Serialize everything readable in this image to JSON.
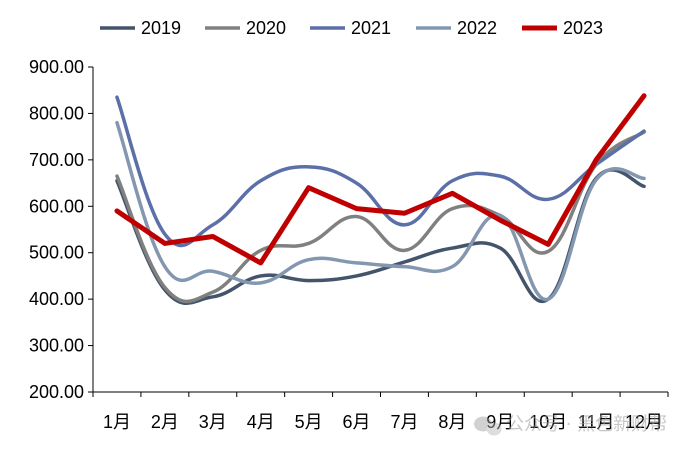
{
  "chart_data": {
    "type": "line",
    "title": "",
    "xlabel": "",
    "ylabel": "",
    "categories": [
      "1月",
      "2月",
      "3月",
      "4月",
      "5月",
      "6月",
      "7月",
      "8月",
      "9月",
      "10月",
      "11月",
      "12月"
    ],
    "ylim": [
      200,
      900
    ],
    "yticks": [
      200,
      300,
      400,
      500,
      600,
      700,
      800,
      900
    ],
    "ytick_labels": [
      "200.00",
      "300.00",
      "400.00",
      "500.00",
      "600.00",
      "700.00",
      "800.00",
      "900.00"
    ],
    "grid": false,
    "legend_position": "top",
    "series": [
      {
        "name": "2019",
        "color": "#44546a",
        "width": 3.5,
        "smooth": true,
        "values": [
          655,
          420,
          405,
          450,
          440,
          450,
          480,
          510,
          510,
          400,
          660,
          643
        ]
      },
      {
        "name": "2020",
        "color": "#808080",
        "width": 3.5,
        "smooth": true,
        "values": [
          665,
          425,
          415,
          505,
          520,
          578,
          505,
          595,
          580,
          503,
          690,
          760
        ]
      },
      {
        "name": "2021",
        "color": "#5b6fa8",
        "width": 3.5,
        "smooth": true,
        "values": [
          835,
          540,
          560,
          655,
          685,
          650,
          560,
          655,
          665,
          615,
          690,
          762
        ]
      },
      {
        "name": "2022",
        "color": "#8497b0",
        "width": 3.5,
        "smooth": true,
        "values": [
          780,
          470,
          460,
          435,
          485,
          478,
          470,
          470,
          580,
          400,
          657,
          660
        ]
      },
      {
        "name": "2023",
        "color": "#c00000",
        "width": 5,
        "smooth": false,
        "values": [
          590,
          520,
          535,
          478,
          640,
          595,
          585,
          628,
          570,
          518,
          700,
          838
        ]
      }
    ]
  },
  "watermark": {
    "text": "公众号 · 黑色新财帮",
    "icon": "wechat-icon"
  }
}
